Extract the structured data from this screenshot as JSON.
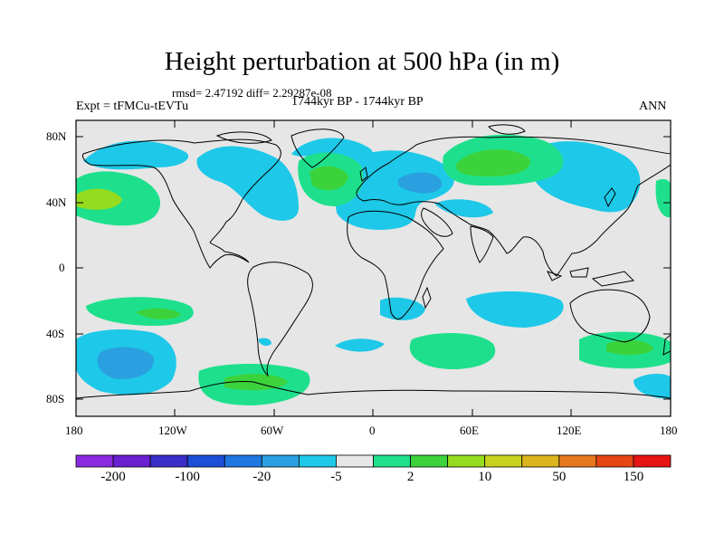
{
  "title": "Height perturbation at 500 hPa (in m)",
  "stats": "rmsd= 2.47192 diff= 2.29287e-08",
  "left_label": "Expt = tFMCu-tEVTu",
  "center_label": "1744kyr BP - 1744kyr BP",
  "right_label": "ANN",
  "lat_labels": [
    "80N",
    "40N",
    "0",
    "40S",
    "80S"
  ],
  "lon_labels": [
    "180",
    "120W",
    "60W",
    "0",
    "60E",
    "120E",
    "180"
  ],
  "colorbar": {
    "colors": [
      "#8a2be2",
      "#6a1fd0",
      "#3a2fc8",
      "#1c4fd8",
      "#1e78e0",
      "#2aa0e0",
      "#1ec8e8",
      "#e6e6e6",
      "#1ee08c",
      "#3cd23c",
      "#96dc1e",
      "#c8d21e",
      "#dcb41e",
      "#e6781e",
      "#e64614",
      "#e61414"
    ],
    "labels": [
      "-200",
      "-100",
      "-20",
      "-5",
      "2",
      "10",
      "50",
      "150"
    ]
  },
  "colors": {
    "ocean_bg": "#e6e6e6",
    "neg_light": "#1ec8e8",
    "neg_mid": "#2aa0e0",
    "pos_light": "#1ee08c",
    "pos_mid": "#3cd23c",
    "pos_high": "#96dc1e"
  }
}
